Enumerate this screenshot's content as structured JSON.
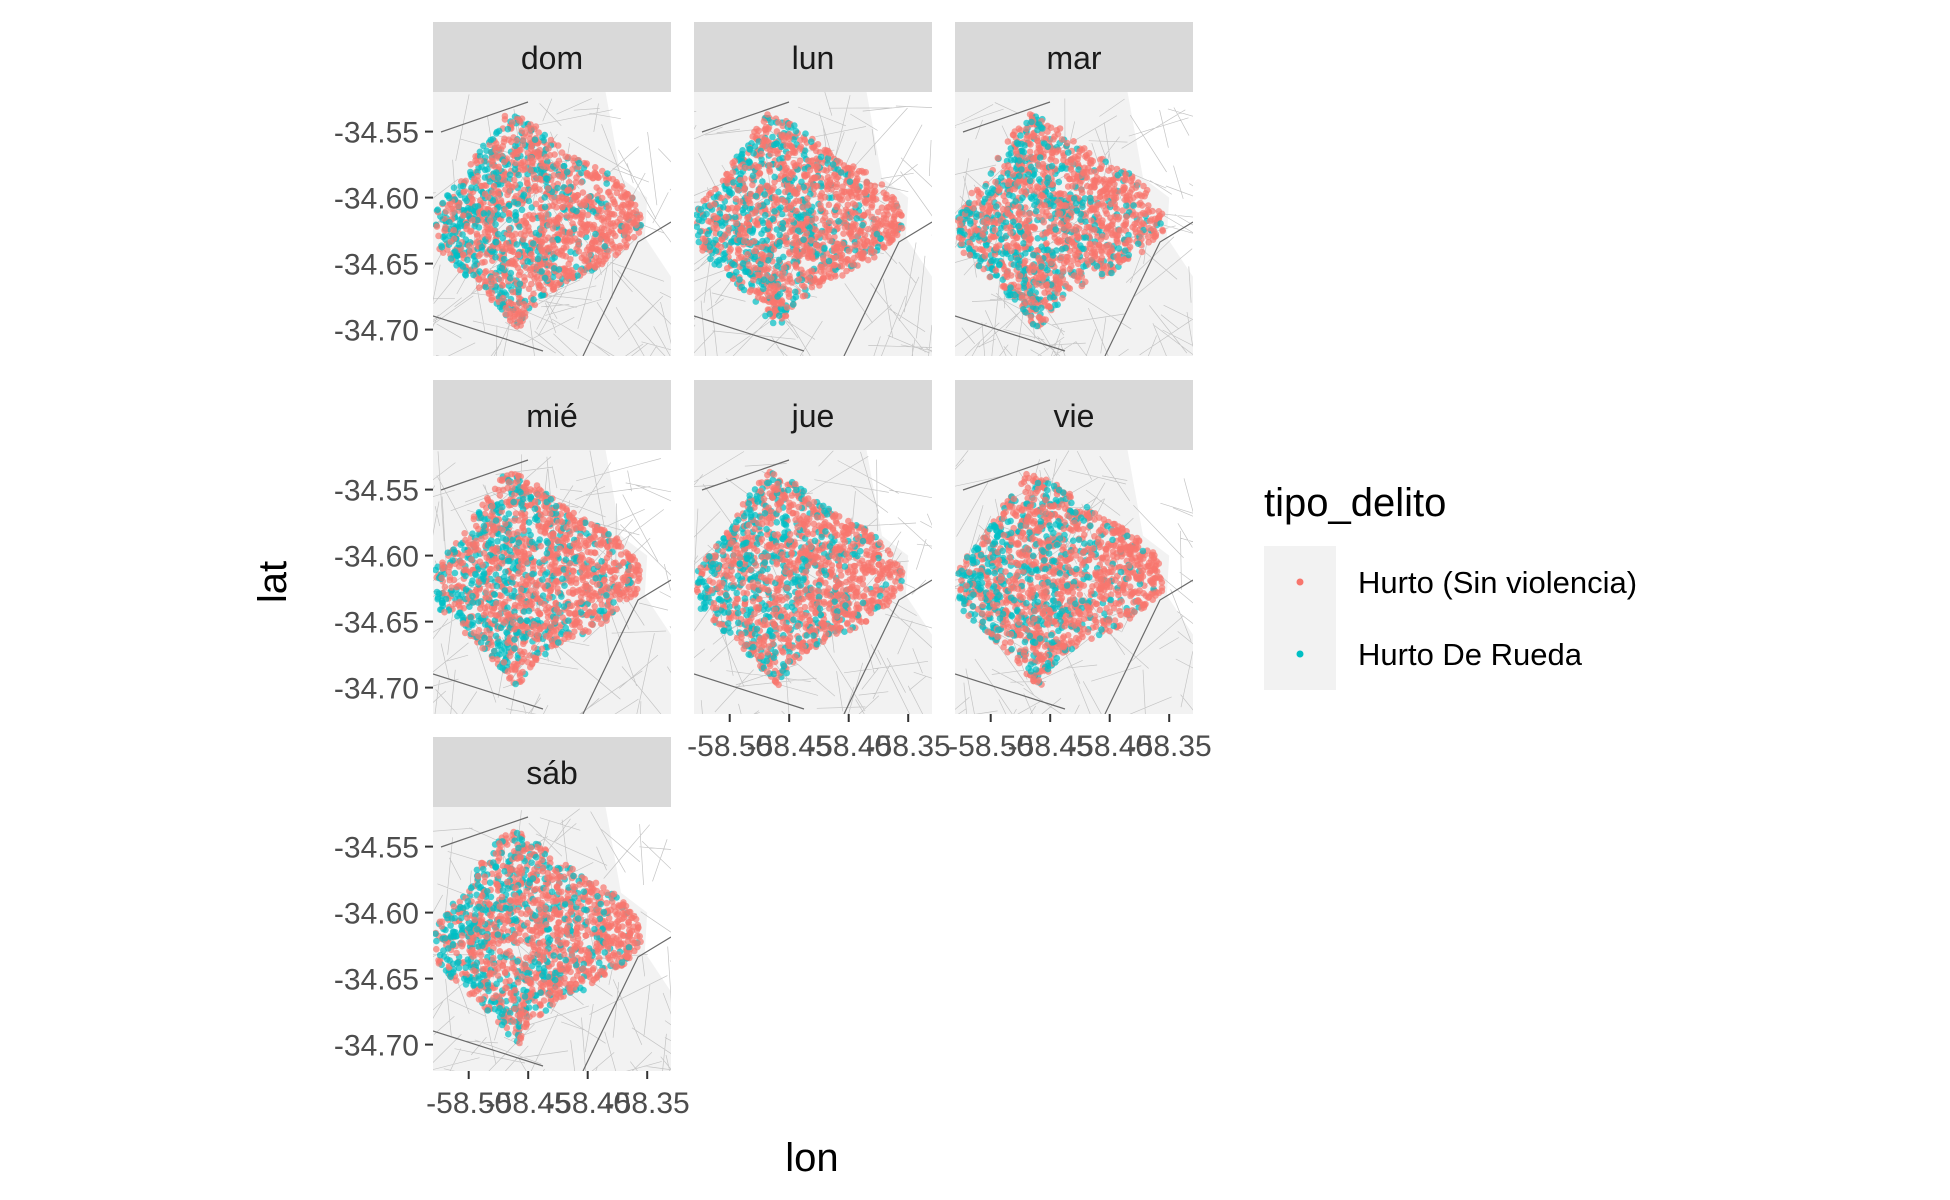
{
  "chart_data": {
    "type": "scatter",
    "facet_by": "day",
    "facets": [
      "dom",
      "lun",
      "mar",
      "mié",
      "jue",
      "vie",
      "sáb"
    ],
    "xlabel": "lon",
    "ylabel": "lat",
    "xlim": [
      -58.53,
      -58.33
    ],
    "ylim": [
      -34.72,
      -34.52
    ],
    "x_ticks": [
      -58.5,
      -58.45,
      -58.4,
      -58.35
    ],
    "x_tick_labels": [
      "-58.50",
      "-58.45",
      "-58.40",
      "-58.35"
    ],
    "y_ticks": [
      -34.55,
      -34.6,
      -34.65,
      -34.7
    ],
    "y_tick_labels": [
      "-34.55",
      "-34.60",
      "-34.65",
      "-34.70"
    ],
    "basemap": "street map",
    "legend": {
      "title": "tipo_delito",
      "position": "right",
      "entries": [
        {
          "label": "Hurto (Sin violencia)",
          "color": "#F8766D"
        },
        {
          "label": "Hurto De Rueda",
          "color": "#00BFC4"
        }
      ]
    },
    "series": [
      {
        "name": "Hurto (Sin violencia)",
        "color": "#F8766D"
      },
      {
        "name": "Hurto De Rueda",
        "color": "#00BFC4"
      }
    ]
  }
}
